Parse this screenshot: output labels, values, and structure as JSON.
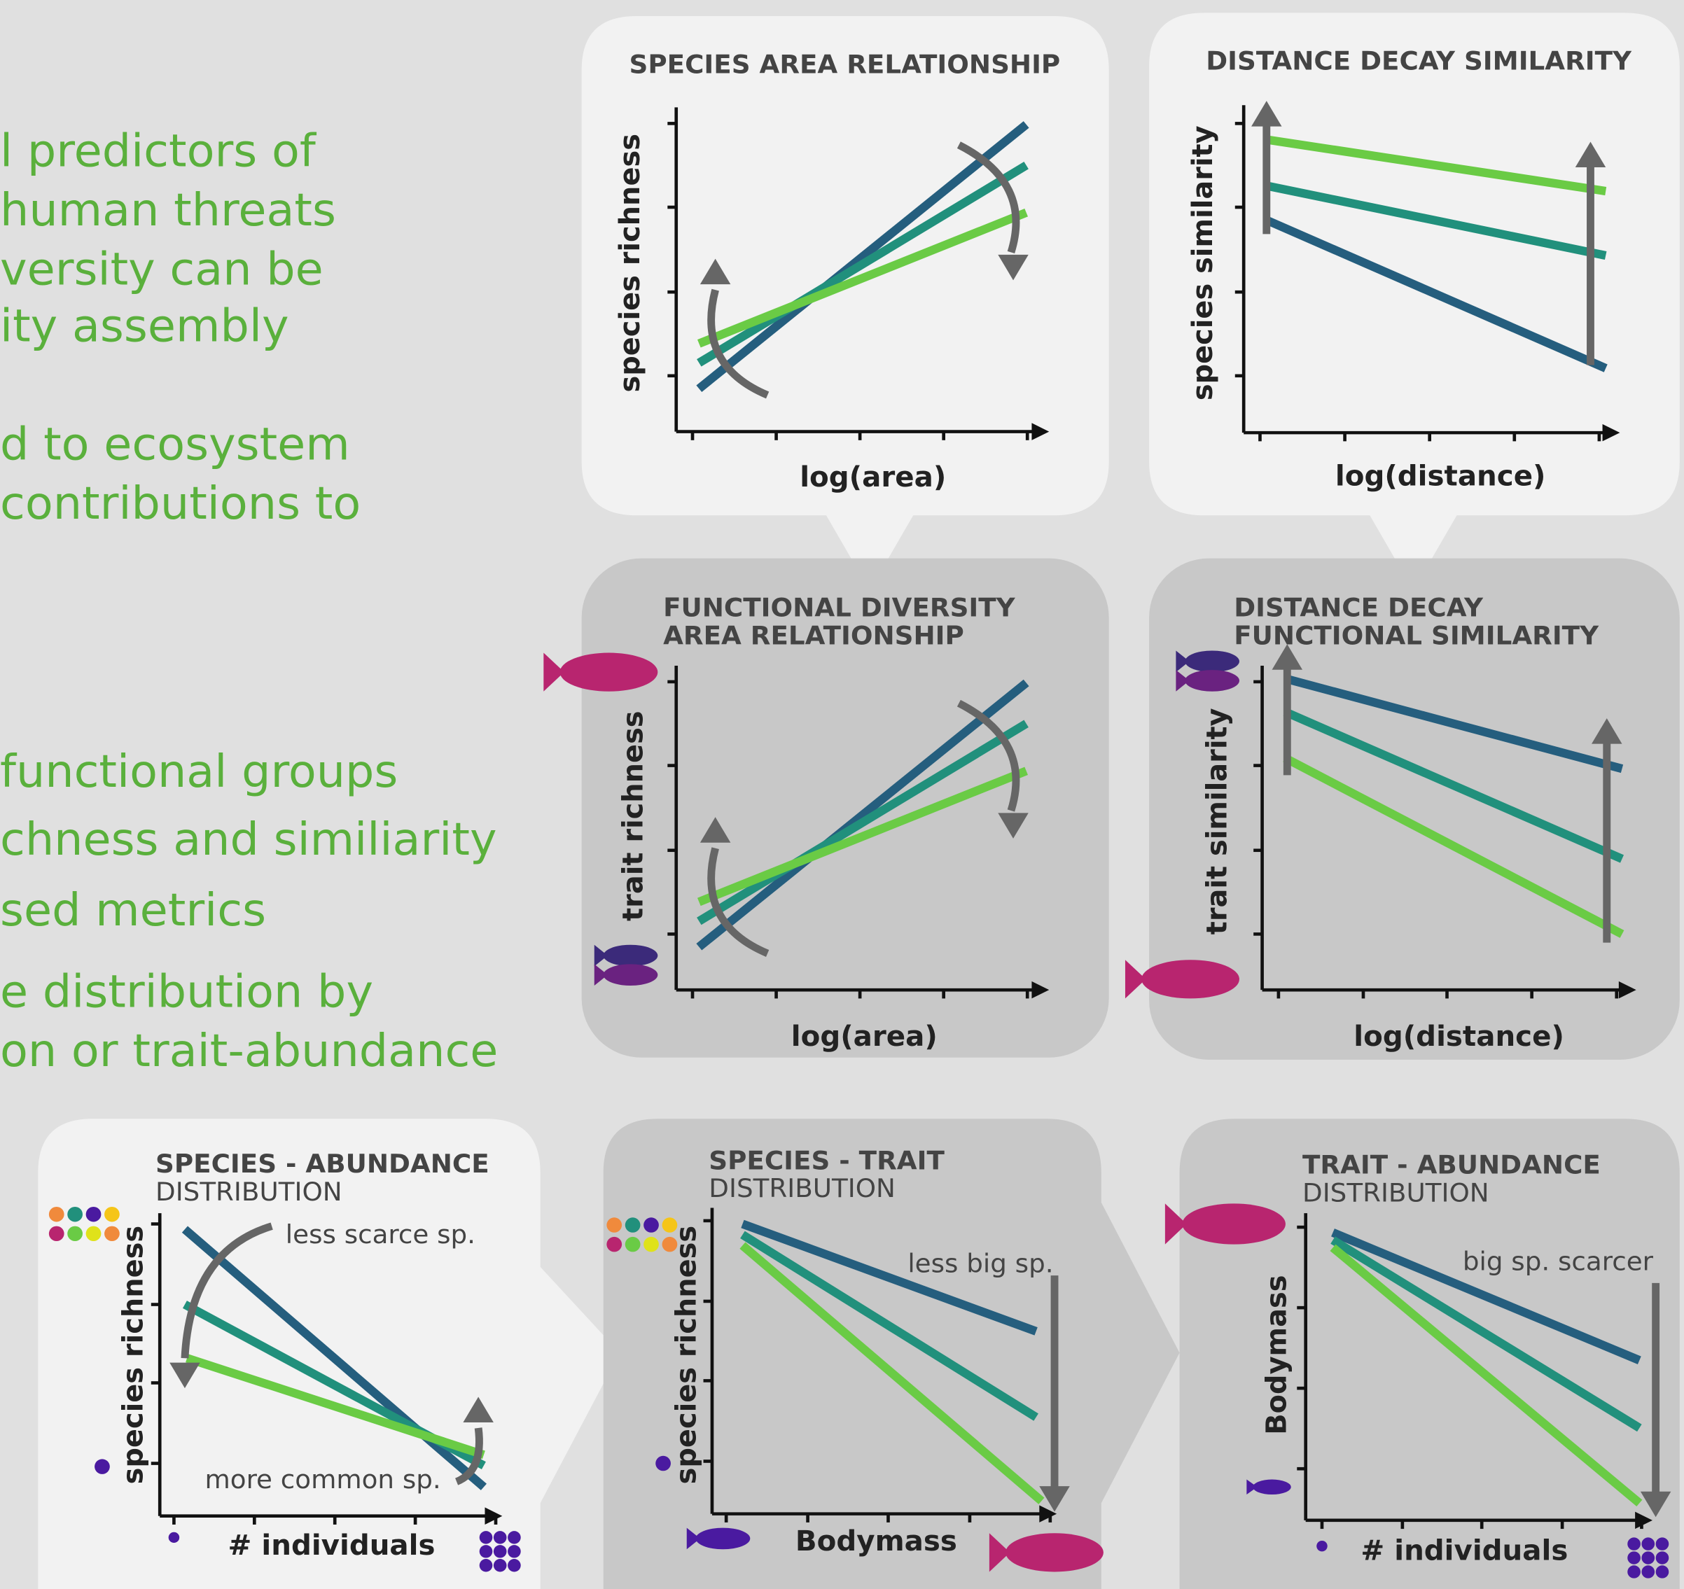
{
  "text_lines": [
    "l predictors of",
    "human threats",
    "versity can be",
    "ity assembly",
    "d to ecosystem",
    "contributions to",
    "functional groups",
    "chness and similiarity",
    "sed metrics",
    "e distribution by",
    "on or trait-abundance"
  ],
  "panels": [
    {
      "title": "SPECIES AREA RELATIONSHIP",
      "ylabel": "species richness",
      "xlabel": "log(area)"
    },
    {
      "title": "DISTANCE DECAY SIMILARITY",
      "ylabel": "species similarity",
      "xlabel": "log(distance)"
    },
    {
      "title": "FUNCTIONAL DIVERSITY",
      "subtitle": "AREA RELATIONSHIP",
      "ylabel": "trait richness",
      "xlabel": "log(area)"
    },
    {
      "title": "DISTANCE DECAY",
      "subtitle": "FUNCTIONAL SIMILARITY",
      "ylabel": "trait similarity",
      "xlabel": "log(distance)"
    },
    {
      "title": "SPECIES - ABUNDANCE",
      "subtitle": "DISTRIBUTION",
      "ylabel": "species richness",
      "xlabel": "# individuals",
      "annotations": [
        "less scarce sp.",
        "more common sp."
      ]
    },
    {
      "title": "SPECIES - TRAIT",
      "subtitle": "DISTRIBUTION",
      "ylabel": "species richness",
      "xlabel": "Bodymass",
      "annotations": [
        "less big sp."
      ]
    },
    {
      "title": "TRAIT - ABUNDANCE",
      "subtitle": "DISTRIBUTION",
      "ylabel": "Bodymass",
      "xlabel": "# individuals",
      "annotations": [
        "big sp. scarcer"
      ]
    }
  ]
}
